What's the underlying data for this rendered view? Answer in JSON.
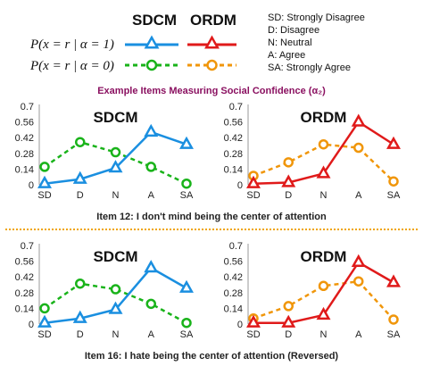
{
  "legend": {
    "model_a": "SDCM",
    "model_b": "ORDM",
    "row1": "P(x = r | α = 1)",
    "row2": "P(x = r | α = 0)"
  },
  "scale_key": [
    "SD: Strongly Disagree",
    "D: Disagree",
    "N: Neutral",
    "A: Agree",
    "SA: Strongly Agree"
  ],
  "section_title": "Example Items Measuring Social Confidence (α₂)",
  "colors": {
    "sdcm_alpha1": "#1a8fe0",
    "sdcm_alpha0": "#19b31a",
    "ordm_alpha1": "#e01a1a",
    "ordm_alpha0": "#f0960a",
    "section_title": "#8a1060",
    "separator": "#f0a500"
  },
  "chart_data": [
    {
      "type": "line",
      "title": "SDCM",
      "categories": [
        "SD",
        "D",
        "N",
        "A",
        "SA"
      ],
      "yticks": [
        "0",
        "0.14",
        "0.28",
        "0.42",
        "0.56",
        "0.7"
      ],
      "ylim": [
        0,
        0.7
      ],
      "series": [
        {
          "name": "P(x = r | α = 1)",
          "values": [
            0.01,
            0.05,
            0.15,
            0.47,
            0.36
          ]
        },
        {
          "name": "P(x = r | α = 0)",
          "values": [
            0.16,
            0.38,
            0.29,
            0.16,
            0.01
          ]
        }
      ]
    },
    {
      "type": "line",
      "title": "ORDM",
      "categories": [
        "SD",
        "D",
        "N",
        "A",
        "SA"
      ],
      "yticks": [
        "0",
        "0.14",
        "0.28",
        "0.42",
        "0.56",
        "0.7"
      ],
      "ylim": [
        0,
        0.7
      ],
      "series": [
        {
          "name": "P(x = r | α = 1)",
          "values": [
            0.01,
            0.02,
            0.1,
            0.56,
            0.36
          ]
        },
        {
          "name": "P(x = r | α = 0)",
          "values": [
            0.08,
            0.2,
            0.36,
            0.33,
            0.03
          ]
        }
      ]
    },
    {
      "type": "line",
      "title": "SDCM",
      "categories": [
        "SD",
        "D",
        "N",
        "A",
        "SA"
      ],
      "yticks": [
        "0",
        "0.14",
        "0.28",
        "0.42",
        "0.56",
        "0.7"
      ],
      "ylim": [
        0,
        0.7
      ],
      "series": [
        {
          "name": "P(x = r | α = 1)",
          "values": [
            0.01,
            0.05,
            0.13,
            0.5,
            0.32
          ]
        },
        {
          "name": "P(x = r | α = 0)",
          "values": [
            0.14,
            0.36,
            0.31,
            0.18,
            0.01
          ]
        }
      ]
    },
    {
      "type": "line",
      "title": "ORDM",
      "categories": [
        "SD",
        "D",
        "N",
        "A",
        "SA"
      ],
      "yticks": [
        "0",
        "0.14",
        "0.28",
        "0.42",
        "0.56",
        "0.7"
      ],
      "ylim": [
        0,
        0.7
      ],
      "series": [
        {
          "name": "P(x = r | α = 1)",
          "values": [
            0.01,
            0.01,
            0.08,
            0.55,
            0.37
          ]
        },
        {
          "name": "P(x = r | α = 0)",
          "values": [
            0.05,
            0.16,
            0.34,
            0.38,
            0.04
          ]
        }
      ]
    }
  ],
  "captions": [
    "Item 12: I don't mind being the center of attention",
    "Item 16: I hate being the center of attention (Reversed)"
  ]
}
